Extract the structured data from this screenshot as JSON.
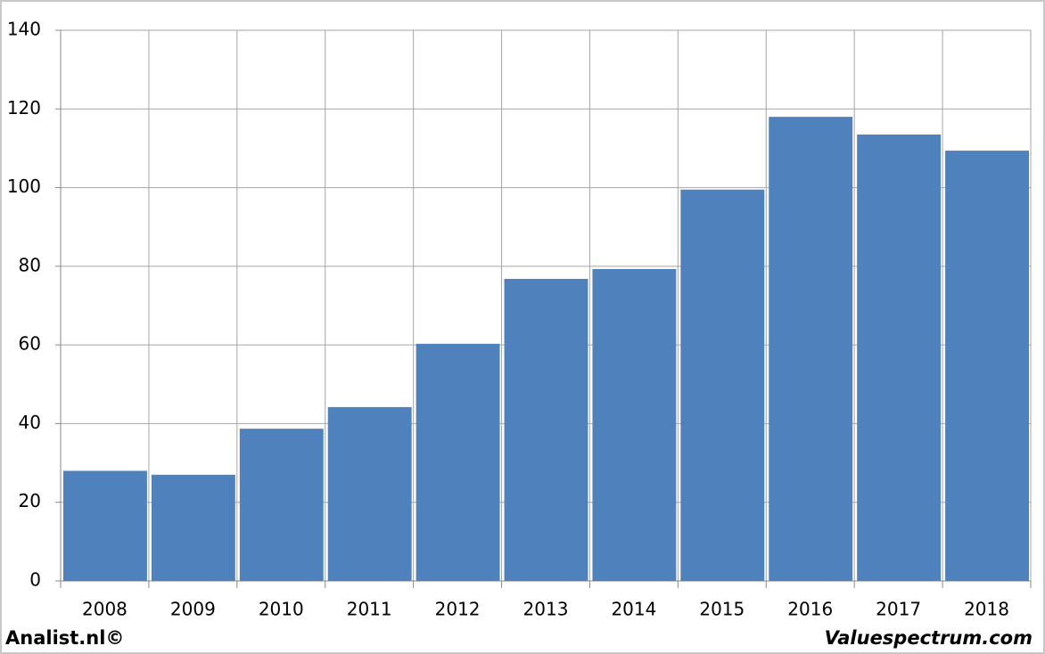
{
  "chart_data": {
    "type": "bar",
    "categories": [
      "2008",
      "2009",
      "2010",
      "2011",
      "2012",
      "2013",
      "2014",
      "2015",
      "2016",
      "2017",
      "2018"
    ],
    "values": [
      28,
      27,
      38.7,
      44.2,
      60.3,
      76.8,
      79.3,
      99.5,
      118,
      113.5,
      109.4
    ],
    "color": "#4f81bd",
    "ylim": [
      0,
      140
    ],
    "yticks": [
      0,
      20,
      40,
      60,
      80,
      100,
      120,
      140
    ],
    "grid": true
  },
  "footer": {
    "left": "Analist.nl©",
    "right": "Valuespectrum.com"
  }
}
